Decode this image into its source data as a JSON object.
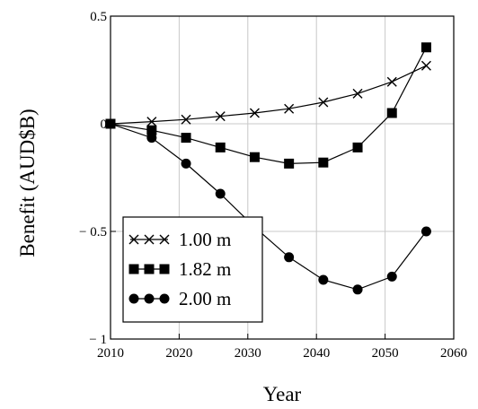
{
  "chart_data": {
    "type": "line",
    "xlabel": "Year",
    "ylabel": "Benefit (AUD$B)",
    "xlim": [
      2010,
      2060
    ],
    "ylim": [
      -1,
      0.5
    ],
    "xticks": [
      2010,
      2020,
      2030,
      2040,
      2050,
      2060
    ],
    "xtick_labels": [
      "2010",
      "2020",
      "2030",
      "2040",
      "2050",
      "2060"
    ],
    "yticks": [
      0.5,
      0,
      -0.5,
      -1
    ],
    "ytick_labels": [
      "0.5",
      "0",
      "− 0.5",
      "− 1"
    ],
    "grid": true,
    "legend_position": "bottom-left",
    "series": [
      {
        "name": "1.00 m",
        "marker": "x",
        "x": [
          2010,
          2016,
          2021,
          2026,
          2031,
          2036,
          2041,
          2046,
          2051,
          2056
        ],
        "y": [
          0,
          0.01,
          0.02,
          0.035,
          0.05,
          0.07,
          0.1,
          0.14,
          0.195,
          0.27
        ]
      },
      {
        "name": "1.82 m",
        "marker": "square",
        "x": [
          2010,
          2016,
          2021,
          2026,
          2031,
          2036,
          2041,
          2046,
          2051,
          2056
        ],
        "y": [
          0,
          -0.03,
          -0.065,
          -0.11,
          -0.155,
          -0.185,
          -0.18,
          -0.11,
          0.05,
          0.355
        ]
      },
      {
        "name": "2.00 m",
        "marker": "circle",
        "x": [
          2010,
          2016,
          2021,
          2026,
          2031,
          2036,
          2041,
          2046,
          2051,
          2056
        ],
        "y": [
          0,
          -0.065,
          -0.185,
          -0.325,
          -0.48,
          -0.62,
          -0.725,
          -0.77,
          -0.71,
          -0.5
        ]
      }
    ]
  }
}
